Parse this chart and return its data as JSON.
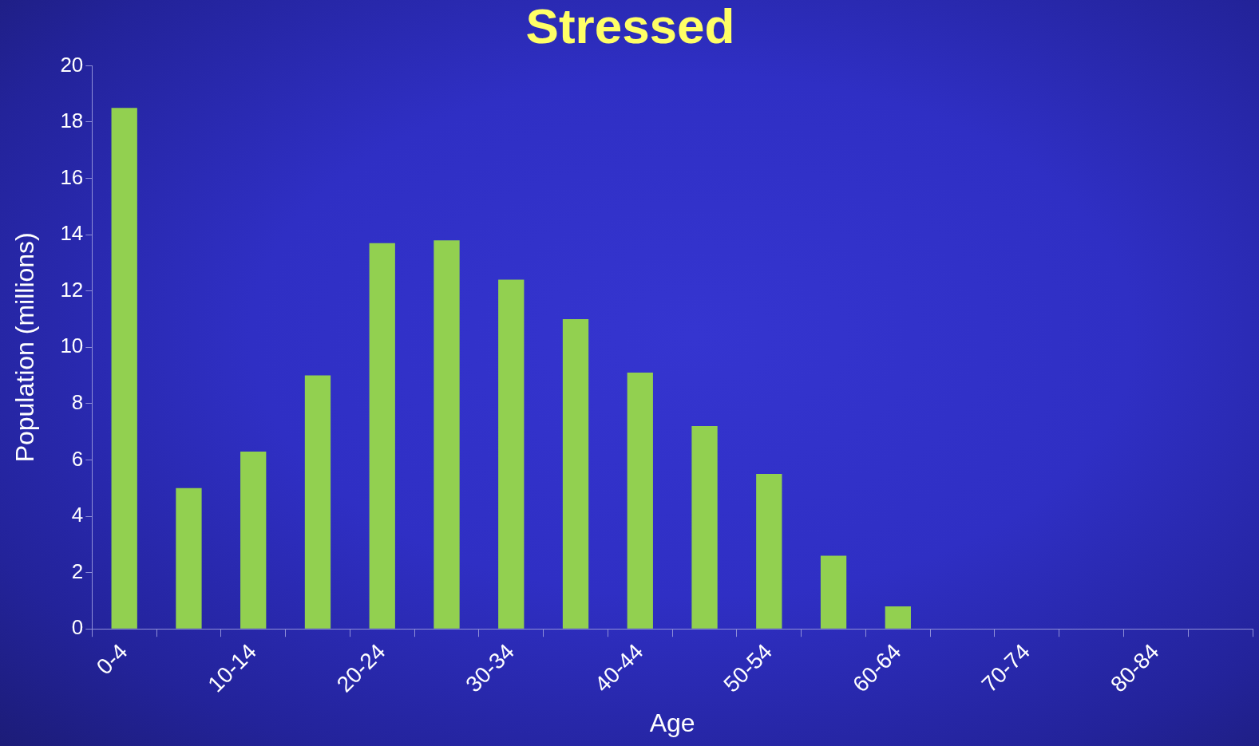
{
  "chart_data": {
    "type": "bar",
    "title": "Stressed",
    "xlabel": "Age",
    "ylabel": "Population (millions)",
    "categories": [
      "0-4",
      null,
      "10-14",
      null,
      "20-24",
      null,
      "30-34",
      null,
      "40-44",
      null,
      "50-54",
      null,
      "60-64",
      null,
      "70-74",
      null,
      "80-84",
      null
    ],
    "values": [
      18.5,
      5.0,
      6.3,
      9.0,
      13.7,
      13.8,
      12.4,
      11.0,
      9.1,
      7.2,
      5.5,
      2.6,
      0.8,
      0,
      0,
      0,
      0,
      0
    ],
    "color": "#92d050",
    "ylim": [
      0,
      20
    ],
    "yticks": [
      0,
      2,
      4,
      6,
      8,
      10,
      12,
      14,
      16,
      18,
      20
    ],
    "grid": false,
    "legend": false
  }
}
